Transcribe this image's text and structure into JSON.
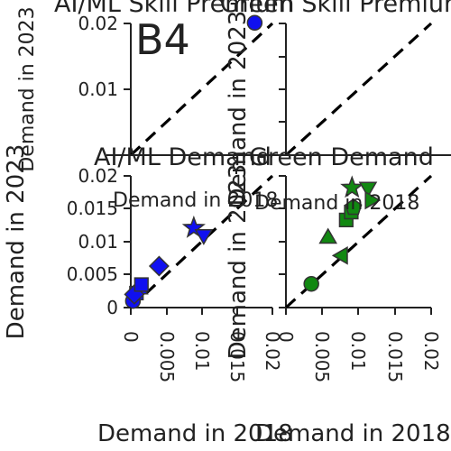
{
  "figure": {
    "panel_label": "B4",
    "colors": {
      "ai_ml": "#1010f0",
      "green": "#118811",
      "marker_edge": "#333333",
      "identity_line": "#000000"
    }
  },
  "chart_data": [
    {
      "id": "ai-ml-skill-premium",
      "type": "scatter",
      "title": "AI/ML Skill Premium",
      "xlabel": "Demand in 2018",
      "ylabel": "Demand in 2023",
      "xlim": [
        0,
        0.02
      ],
      "ylim": [
        0,
        0.02
      ],
      "xticks": [],
      "yticks": [
        "0.01",
        "0.02"
      ],
      "points": [
        {
          "x": 0.0175,
          "y": 0.0201,
          "marker": "circle"
        }
      ]
    },
    {
      "id": "green-skill-premium",
      "type": "scatter",
      "title": "Green Skill Premium",
      "xlabel": "Demand in 2018",
      "ylabel": "Demand in 2023",
      "xlim": [
        0,
        0.02
      ],
      "ylim": [
        0,
        0.02
      ],
      "xticks": [],
      "yticks": [],
      "points": []
    },
    {
      "id": "ai-ml-demand",
      "type": "scatter",
      "title": "AI/ML Demand",
      "xlabel": "Demand in 2018",
      "ylabel": "Demand in 2023",
      "xlim": [
        0,
        0.02
      ],
      "ylim": [
        0,
        0.02
      ],
      "xticks": [
        "0",
        "0.005",
        "0.01",
        "0.015",
        "0.02"
      ],
      "yticks": [
        "0",
        "0.005",
        "0.01",
        "0.015",
        "0.02"
      ],
      "points": [
        {
          "x": 0.0003,
          "y": 0.001,
          "marker": "circle"
        },
        {
          "x": 0.0008,
          "y": 0.0022,
          "marker": "square"
        },
        {
          "x": 0.0012,
          "y": 0.0028,
          "marker": "triangle-up"
        },
        {
          "x": 0.0005,
          "y": 0.002,
          "marker": "diamond"
        },
        {
          "x": 0.0015,
          "y": 0.0035,
          "marker": "square"
        },
        {
          "x": 0.004,
          "y": 0.0063,
          "marker": "diamond"
        },
        {
          "x": 0.0089,
          "y": 0.0121,
          "marker": "star"
        },
        {
          "x": 0.0103,
          "y": 0.0111,
          "marker": "triangle-down"
        }
      ]
    },
    {
      "id": "green-demand",
      "type": "scatter",
      "title": "Green Demand",
      "xlabel": "Demand in 2018",
      "ylabel": "Demand in 2023",
      "xlim": [
        0,
        0.02
      ],
      "ylim": [
        0,
        0.02
      ],
      "xticks": [
        "0",
        "0.005",
        "0.01",
        "0.015",
        "0.02"
      ],
      "yticks": [],
      "points": [
        {
          "x": 0.0035,
          "y": 0.0036,
          "marker": "circle"
        },
        {
          "x": 0.0058,
          "y": 0.0105,
          "marker": "triangle-up"
        },
        {
          "x": 0.0078,
          "y": 0.0079,
          "marker": "triangle-left"
        },
        {
          "x": 0.0083,
          "y": 0.0133,
          "marker": "square"
        },
        {
          "x": 0.009,
          "y": 0.0145,
          "marker": "square"
        },
        {
          "x": 0.0093,
          "y": 0.0152,
          "marker": "pentagon"
        },
        {
          "x": 0.0091,
          "y": 0.0182,
          "marker": "star"
        },
        {
          "x": 0.0113,
          "y": 0.0183,
          "marker": "triangle-down"
        },
        {
          "x": 0.0116,
          "y": 0.0163,
          "marker": "triangle-right"
        }
      ]
    }
  ]
}
